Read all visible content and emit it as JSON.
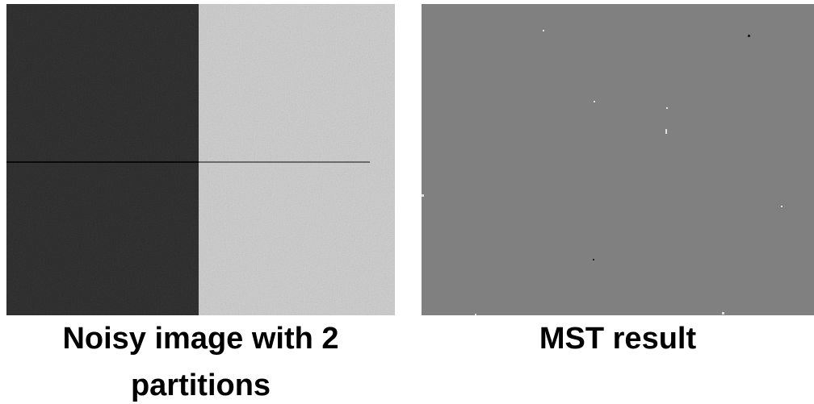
{
  "panels": [
    {
      "caption": "Noisy image with 2 partitions"
    },
    {
      "caption": "MST result"
    }
  ]
}
